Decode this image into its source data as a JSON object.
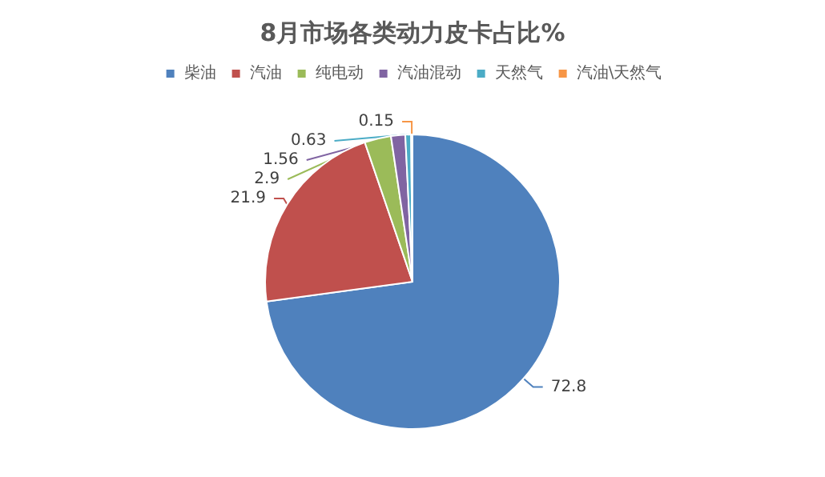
{
  "chart_data": {
    "type": "pie",
    "title": "8月市场各类动力皮卡占比%",
    "categories": [
      "柴油",
      "汽油",
      "纯电动",
      "汽油混动",
      "天然气",
      "汽油\\天然气"
    ],
    "values": [
      72.8,
      21.9,
      2.9,
      1.56,
      0.63,
      0.15
    ],
    "colors": [
      "#4f81bd",
      "#c0504d",
      "#9bbb59",
      "#8064a2",
      "#4bacc6",
      "#f79646"
    ],
    "legend": "top",
    "data_labels": true
  }
}
